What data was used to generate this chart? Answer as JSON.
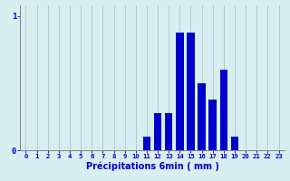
{
  "categories": [
    0,
    1,
    2,
    3,
    4,
    5,
    6,
    7,
    8,
    9,
    10,
    11,
    12,
    13,
    14,
    15,
    16,
    17,
    18,
    19,
    20,
    21,
    22,
    23
  ],
  "values": [
    0,
    0,
    0,
    0,
    0,
    0,
    0,
    0,
    0,
    0,
    0,
    0.1,
    0.28,
    0.28,
    0.88,
    0.88,
    0.5,
    0.38,
    0.6,
    0.1,
    0.0,
    0.0,
    0.0,
    0.0
  ],
  "bar_color": "#0000cc",
  "bg_color": "#d8eef0",
  "plot_bg_color": "#d8eef0",
  "grid_color": "#a8c8cc",
  "axis_color": "#808080",
  "tick_color": "#0000cc",
  "xlabel": "Précipitations 6min ( mm )",
  "yticks": [
    0,
    1
  ],
  "ylim": [
    0,
    1.08
  ],
  "xlim": [
    -0.5,
    23.5
  ]
}
